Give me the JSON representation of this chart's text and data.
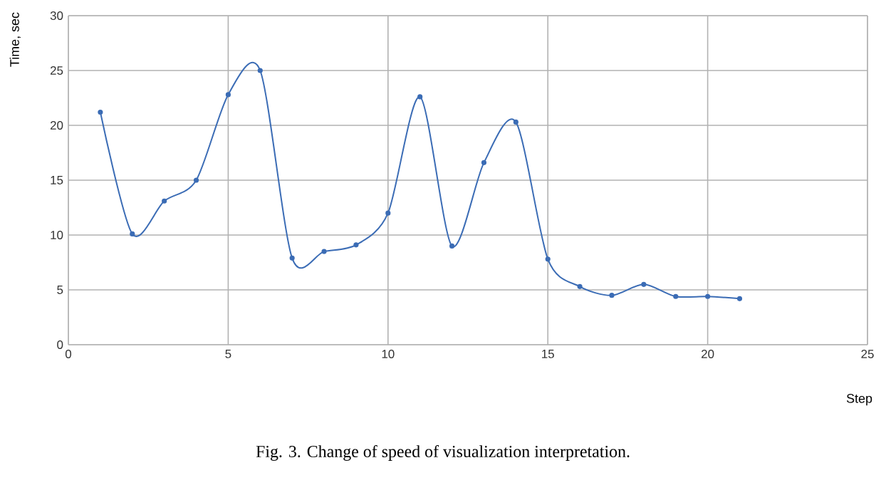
{
  "chart_data": {
    "type": "line",
    "title": "Fig. 3. Change of speed of visualization interpretation.",
    "xlabel": "Step",
    "ylabel": "Time, sec",
    "x": [
      1,
      2,
      3,
      4,
      5,
      6,
      7,
      8,
      9,
      10,
      11,
      12,
      13,
      14,
      15,
      16,
      17,
      18,
      19,
      20,
      21
    ],
    "series": [
      {
        "color": "#3b6cb5",
        "values": [
          21.2,
          10.1,
          13.1,
          15.0,
          22.8,
          25.0,
          7.9,
          8.5,
          9.1,
          12.0,
          22.6,
          9.0,
          16.6,
          20.3,
          7.8,
          5.3,
          4.5,
          5.5,
          4.4,
          4.4,
          4.2
        ]
      }
    ],
    "xlim": [
      0,
      25
    ],
    "ylim": [
      0,
      30
    ],
    "xticks": [
      0,
      5,
      10,
      15,
      20,
      25
    ],
    "yticks": [
      0,
      5,
      10,
      15,
      20,
      25,
      30
    ],
    "grid": true,
    "marker": "circle",
    "line_style": "solid"
  }
}
